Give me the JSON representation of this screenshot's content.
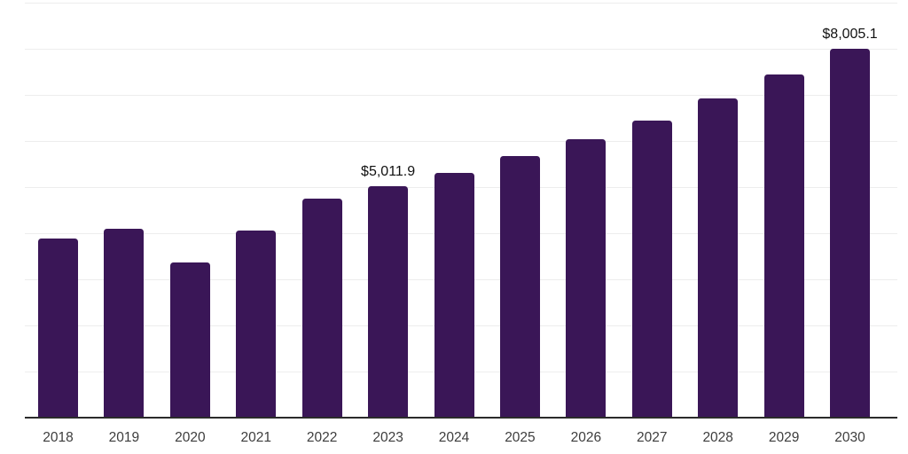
{
  "chart_data": {
    "type": "bar",
    "title": "",
    "xlabel": "",
    "ylabel": "",
    "categories": [
      "2018",
      "2019",
      "2020",
      "2021",
      "2022",
      "2023",
      "2024",
      "2025",
      "2026",
      "2027",
      "2028",
      "2029",
      "2030"
    ],
    "values": [
      3890,
      4100,
      3360,
      4065,
      4745,
      5011.9,
      5315,
      5680,
      6045,
      6450,
      6925,
      7435,
      8005.1
    ],
    "data_labels": [
      {
        "index": 5,
        "text": "$5,011.9"
      },
      {
        "index": 12,
        "text": "$8,005.1"
      }
    ],
    "ylim": [
      0,
      9000
    ],
    "gridline_interval": 1000,
    "grid": true,
    "legend": false,
    "y_axis_labels_visible": false,
    "colors": {
      "bar": "#3a1657",
      "gridline": "#ededed",
      "axis": "#2b2b2b",
      "tick_label": "#3d3d3d",
      "data_label": "#111111",
      "background": "#ffffff"
    }
  }
}
